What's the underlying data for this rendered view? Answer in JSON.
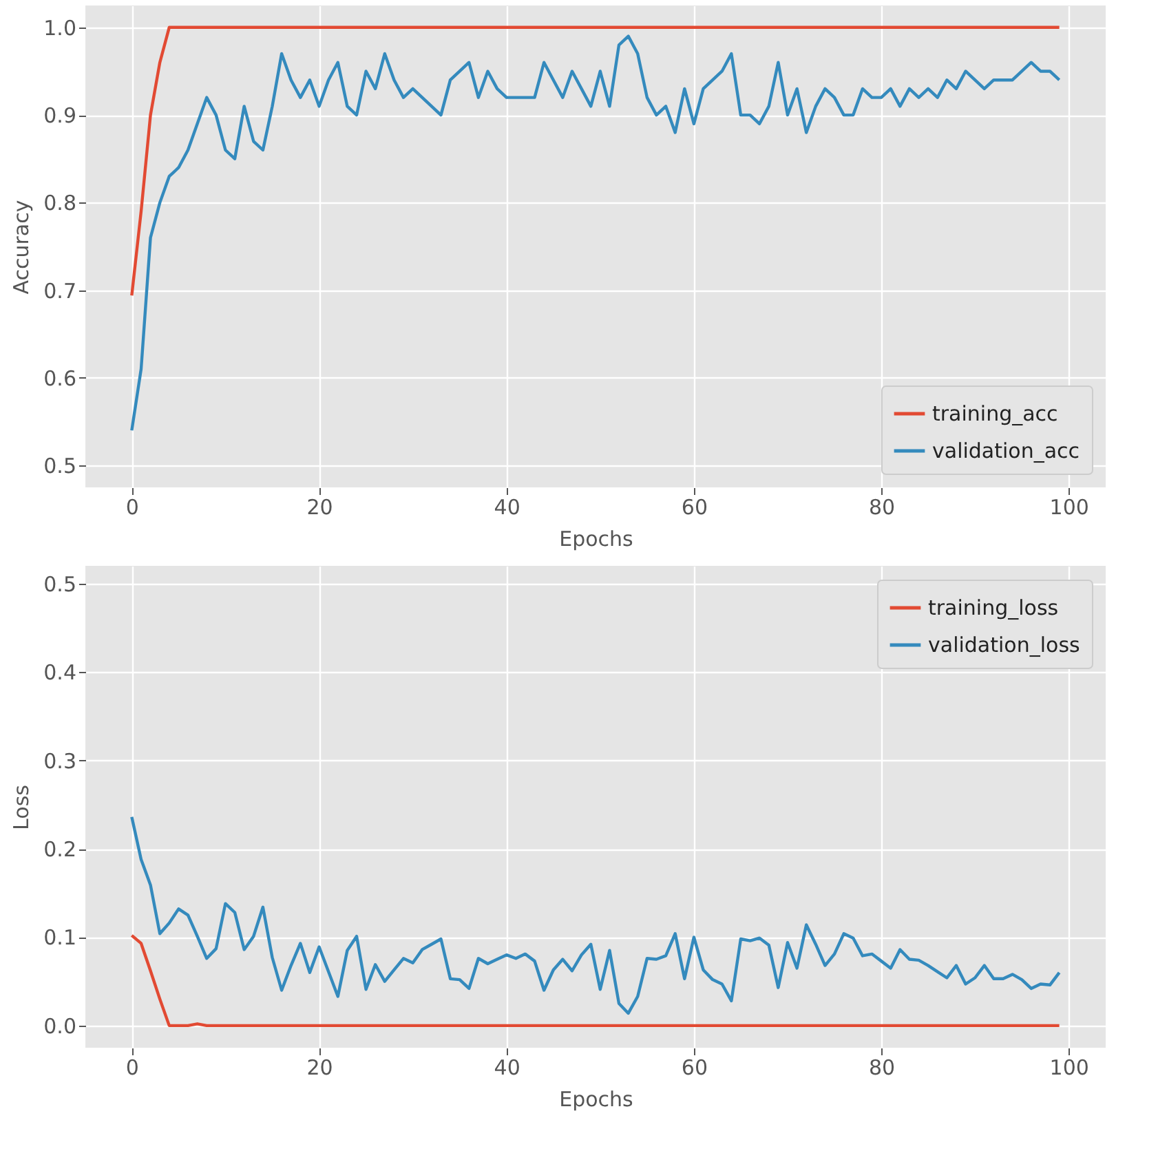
{
  "chart_data": [
    {
      "type": "line",
      "xlabel": "Epochs",
      "ylabel": "Accuracy",
      "xlim": [
        -4.95,
        103.95
      ],
      "xticks": [
        0,
        20,
        40,
        60,
        80,
        100
      ],
      "ylim": [
        0.475,
        1.025
      ],
      "yticks": [
        0.5,
        0.6,
        0.7,
        0.8,
        0.9,
        {
          "value": 1,
          "label": "1.0"
        }
      ],
      "grid": true,
      "legend": "bottom right",
      "x": [
        0,
        1,
        2,
        3,
        4,
        5,
        6,
        7,
        8,
        9,
        10,
        11,
        12,
        13,
        14,
        15,
        16,
        17,
        18,
        19,
        20,
        21,
        22,
        23,
        24,
        25,
        26,
        27,
        28,
        29,
        30,
        31,
        32,
        33,
        34,
        35,
        36,
        37,
        38,
        39,
        40,
        41,
        42,
        43,
        44,
        45,
        46,
        47,
        48,
        49,
        50,
        51,
        52,
        53,
        54,
        55,
        56,
        57,
        58,
        59,
        60,
        61,
        62,
        63,
        64,
        65,
        66,
        67,
        68,
        69,
        70,
        71,
        72,
        73,
        74,
        75,
        76,
        77,
        78,
        79,
        80,
        81,
        82,
        83,
        84,
        85,
        86,
        87,
        88,
        89,
        90,
        91,
        92,
        93,
        94,
        95,
        96,
        97,
        98,
        99
      ],
      "series": [
        {
          "name": "training_acc",
          "color": "#e24a33",
          "values": [
            0.694,
            0.79,
            0.9,
            0.96,
            1.0,
            1.0,
            1.0,
            1.0,
            1.0,
            1.0,
            1.0,
            1.0,
            1.0,
            1.0,
            1.0,
            1.0,
            1.0,
            1.0,
            1.0,
            1.0,
            1.0,
            1.0,
            1.0,
            1.0,
            1.0,
            1.0,
            1.0,
            1.0,
            1.0,
            1.0,
            1.0,
            1.0,
            1.0,
            1.0,
            1.0,
            1.0,
            1.0,
            1.0,
            1.0,
            1.0,
            1.0,
            1.0,
            1.0,
            1.0,
            1.0,
            1.0,
            1.0,
            1.0,
            1.0,
            1.0,
            1.0,
            1.0,
            1.0,
            1.0,
            1.0,
            1.0,
            1.0,
            1.0,
            1.0,
            1.0,
            1.0,
            1.0,
            1.0,
            1.0,
            1.0,
            1.0,
            1.0,
            1.0,
            1.0,
            1.0,
            1.0,
            1.0,
            1.0,
            1.0,
            1.0,
            1.0,
            1.0,
            1.0,
            1.0,
            1.0,
            1.0,
            1.0,
            1.0,
            1.0,
            1.0,
            1.0,
            1.0,
            1.0,
            1.0,
            1.0,
            1.0,
            1.0,
            1.0,
            1.0,
            1.0,
            1.0,
            1.0,
            1.0,
            1.0,
            1.0
          ]
        },
        {
          "name": "validation_acc",
          "color": "#348abd",
          "values": [
            0.54,
            0.61,
            0.76,
            0.8,
            0.83,
            0.84,
            0.86,
            0.89,
            0.92,
            0.9,
            0.86,
            0.85,
            0.91,
            0.87,
            0.86,
            0.91,
            0.97,
            0.94,
            0.92,
            0.94,
            0.91,
            0.94,
            0.96,
            0.91,
            0.9,
            0.95,
            0.93,
            0.97,
            0.94,
            0.92,
            0.93,
            0.92,
            0.91,
            0.9,
            0.94,
            0.95,
            0.96,
            0.92,
            0.95,
            0.93,
            0.92,
            0.92,
            0.92,
            0.92,
            0.96,
            0.94,
            0.92,
            0.95,
            0.93,
            0.91,
            0.95,
            0.91,
            0.98,
            0.99,
            0.97,
            0.92,
            0.9,
            0.91,
            0.88,
            0.93,
            0.89,
            0.93,
            0.94,
            0.95,
            0.97,
            0.9,
            0.9,
            0.89,
            0.91,
            0.96,
            0.9,
            0.93,
            0.88,
            0.91,
            0.93,
            0.92,
            0.9,
            0.9,
            0.93,
            0.92,
            0.92,
            0.93,
            0.91,
            0.93,
            0.92,
            0.93,
            0.92,
            0.94,
            0.93,
            0.95,
            0.94,
            0.93,
            0.94,
            0.94,
            0.94,
            0.95,
            0.96,
            0.95,
            0.95,
            0.94
          ]
        }
      ]
    },
    {
      "type": "line",
      "xlabel": "Epochs",
      "ylabel": "Loss",
      "xlim": [
        -4.95,
        103.95
      ],
      "xticks": [
        0,
        20,
        40,
        60,
        80,
        100
      ],
      "ylim": [
        -0.025,
        0.52
      ],
      "yticks": [
        {
          "value": 0,
          "label": "0.0"
        },
        0.1,
        0.2,
        0.3,
        0.4,
        0.5
      ],
      "grid": true,
      "legend": "top right",
      "x": [
        0,
        1,
        2,
        3,
        4,
        5,
        6,
        7,
        8,
        9,
        10,
        11,
        12,
        13,
        14,
        15,
        16,
        17,
        18,
        19,
        20,
        21,
        22,
        23,
        24,
        25,
        26,
        27,
        28,
        29,
        30,
        31,
        32,
        33,
        34,
        35,
        36,
        37,
        38,
        39,
        40,
        41,
        42,
        43,
        44,
        45,
        46,
        47,
        48,
        49,
        50,
        51,
        52,
        53,
        54,
        55,
        56,
        57,
        58,
        59,
        60,
        61,
        62,
        63,
        64,
        65,
        66,
        67,
        68,
        69,
        70,
        71,
        72,
        73,
        74,
        75,
        76,
        77,
        78,
        79,
        80,
        81,
        82,
        83,
        84,
        85,
        86,
        87,
        88,
        89,
        90,
        91,
        92,
        93,
        94,
        95,
        96,
        97,
        98,
        99
      ],
      "series": [
        {
          "name": "training_loss",
          "color": "#e24a33",
          "values": [
            0.102,
            0.093,
            0.062,
            0.03,
            0,
            0,
            0,
            0.002,
            0,
            0,
            0,
            0,
            0,
            0,
            0,
            0,
            0,
            0,
            0,
            0,
            0,
            0,
            0,
            0,
            0,
            0,
            0,
            0,
            0,
            0,
            0,
            0,
            0,
            0,
            0,
            0,
            0,
            0,
            0,
            0,
            0,
            0,
            0,
            0,
            0,
            0,
            0,
            0,
            0,
            0,
            0,
            0,
            0,
            0,
            0,
            0,
            0,
            0,
            0,
            0,
            0,
            0,
            0,
            0,
            0,
            0,
            0,
            0,
            0,
            0,
            0,
            0,
            0,
            0,
            0,
            0,
            0,
            0,
            0,
            0,
            0,
            0,
            0,
            0,
            0,
            0,
            0,
            0,
            0,
            0,
            0,
            0,
            0,
            0,
            0,
            0,
            0,
            0,
            0,
            0
          ]
        },
        {
          "name": "validation_loss",
          "color": "#348abd",
          "values": [
            0.236,
            0.188,
            0.159,
            0.104,
            0.116,
            0.132,
            0.125,
            0.101,
            0.076,
            0.087,
            0.138,
            0.128,
            0.086,
            0.101,
            0.134,
            0.077,
            0.04,
            0.068,
            0.093,
            0.06,
            0.089,
            0.061,
            0.033,
            0.085,
            0.101,
            0.041,
            0.069,
            0.05,
            0.063,
            0.076,
            0.071,
            0.086,
            0.092,
            0.098,
            0.053,
            0.052,
            0.042,
            0.076,
            0.07,
            0.075,
            0.08,
            0.076,
            0.081,
            0.073,
            0.04,
            0.063,
            0.075,
            0.062,
            0.08,
            0.092,
            0.041,
            0.085,
            0.025,
            0.014,
            0.033,
            0.076,
            0.075,
            0.079,
            0.104,
            0.053,
            0.1,
            0.063,
            0.052,
            0.047,
            0.028,
            0.098,
            0.096,
            0.099,
            0.091,
            0.043,
            0.094,
            0.065,
            0.114,
            0.092,
            0.068,
            0.081,
            0.104,
            0.099,
            0.079,
            0.081,
            0.073,
            0.065,
            0.086,
            0.075,
            0.074,
            0.068,
            0.061,
            0.054,
            0.068,
            0.047,
            0.054,
            0.068,
            0.053,
            0.053,
            0.058,
            0.052,
            0.042,
            0.047,
            0.046,
            0.06
          ]
        }
      ]
    }
  ]
}
